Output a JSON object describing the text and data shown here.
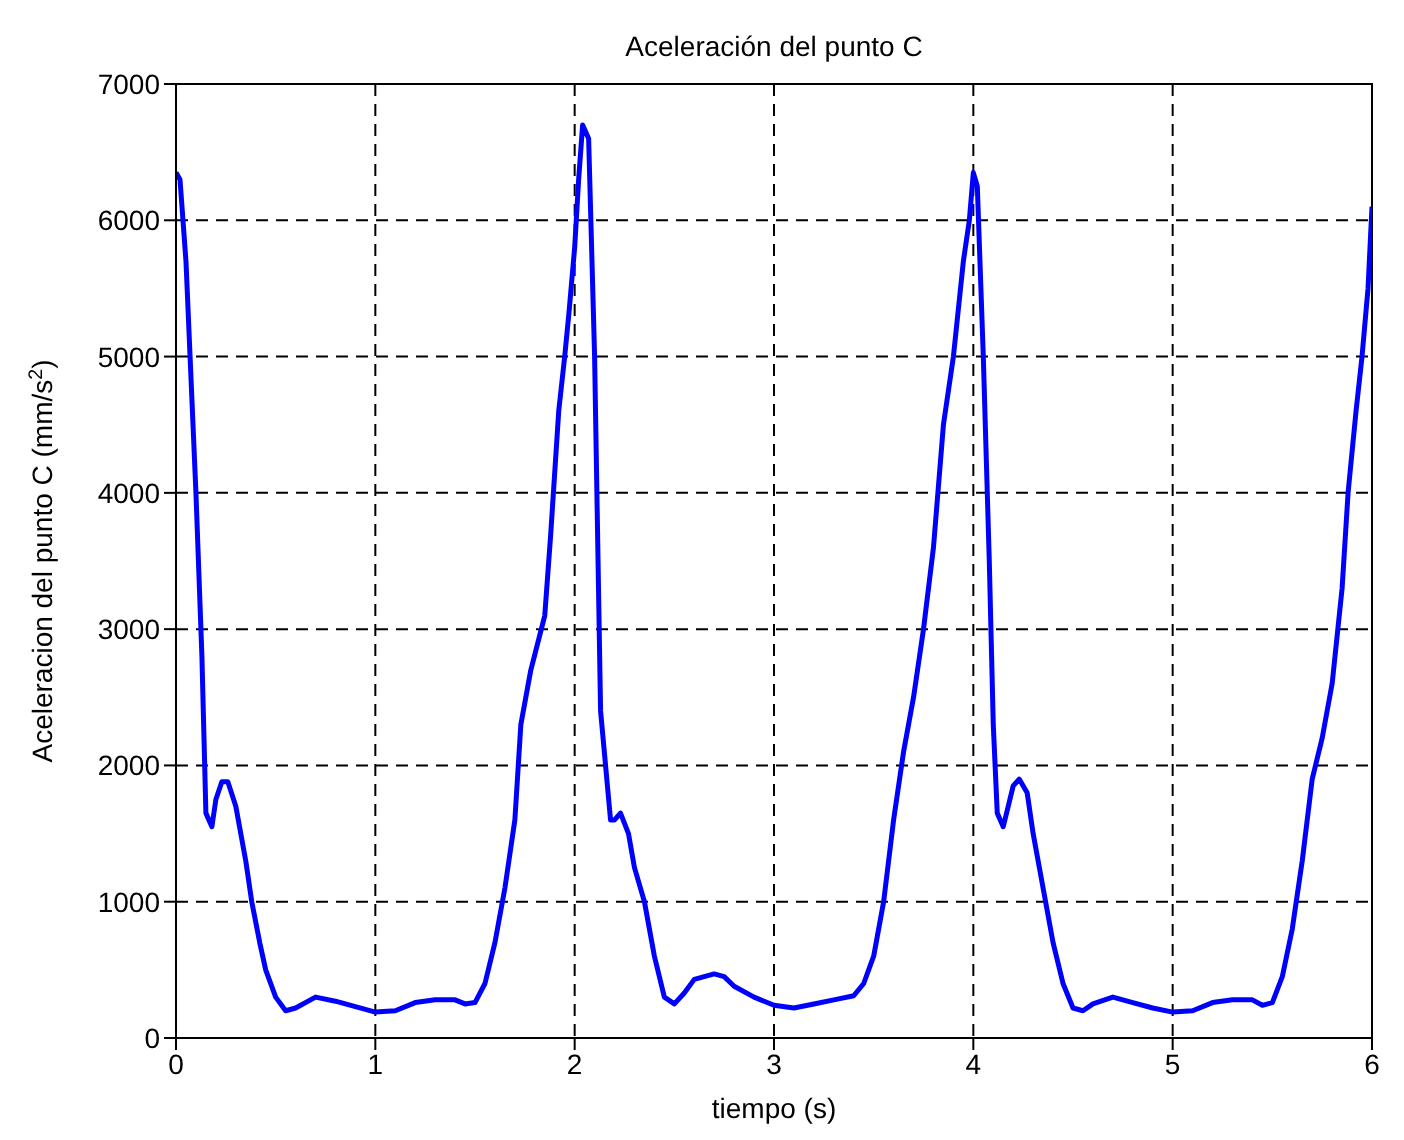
{
  "chart_data": {
    "type": "line",
    "title": "Aceleración del punto C",
    "xlabel": "tiempo (s)",
    "ylabel": "Aceleracion del punto C (mm/s$^{2}$)",
    "x": [
      0,
      0.02,
      0.05,
      0.1,
      0.13,
      0.15,
      0.18,
      0.2,
      0.23,
      0.26,
      0.3,
      0.35,
      0.38,
      0.42,
      0.45,
      0.5,
      0.55,
      0.6,
      0.7,
      0.8,
      0.9,
      1.0,
      1.1,
      1.2,
      1.3,
      1.4,
      1.45,
      1.5,
      1.55,
      1.6,
      1.65,
      1.7,
      1.73,
      1.78,
      1.85,
      1.88,
      1.92,
      1.95,
      1.97,
      2.0,
      2.02,
      2.04,
      2.07,
      2.1,
      2.13,
      2.18,
      2.2,
      2.23,
      2.27,
      2.3,
      2.35,
      2.4,
      2.45,
      2.5,
      2.55,
      2.6,
      2.65,
      2.7,
      2.75,
      2.8,
      2.9,
      3.0,
      3.1,
      3.2,
      3.3,
      3.4,
      3.45,
      3.5,
      3.55,
      3.6,
      3.65,
      3.7,
      3.75,
      3.8,
      3.85,
      3.9,
      3.95,
      3.98,
      4.0,
      4.02,
      4.05,
      4.08,
      4.1,
      4.12,
      4.15,
      4.2,
      4.23,
      4.27,
      4.3,
      4.35,
      4.4,
      4.45,
      4.5,
      4.55,
      4.6,
      4.7,
      4.8,
      4.9,
      5.0,
      5.1,
      5.2,
      5.3,
      5.4,
      5.45,
      5.5,
      5.55,
      5.6,
      5.65,
      5.7,
      5.75,
      5.8,
      5.85,
      5.88,
      5.92,
      5.95,
      5.98,
      6.0
    ],
    "series": [
      {
        "color": "#0000ff",
        "values": [
          6350,
          6300,
          5700,
          4000,
          2800,
          1650,
          1550,
          1750,
          1880,
          1880,
          1700,
          1300,
          1000,
          700,
          500,
          300,
          200,
          220,
          300,
          270,
          230,
          190,
          200,
          260,
          280,
          280,
          250,
          260,
          400,
          700,
          1100,
          1600,
          2300,
          2700,
          3100,
          3700,
          4600,
          5000,
          5300,
          5800,
          6300,
          6700,
          6600,
          5000,
          2400,
          1600,
          1600,
          1650,
          1500,
          1250,
          1000,
          600,
          300,
          250,
          330,
          430,
          450,
          470,
          450,
          380,
          300,
          240,
          220,
          250,
          280,
          310,
          400,
          600,
          1000,
          1600,
          2100,
          2500,
          3000,
          3600,
          4500,
          5000,
          5700,
          6000,
          6350,
          6250,
          5000,
          3500,
          2300,
          1650,
          1550,
          1850,
          1900,
          1800,
          1500,
          1100,
          700,
          400,
          220,
          200,
          250,
          300,
          260,
          220,
          190,
          200,
          260,
          280,
          280,
          240,
          260,
          450,
          800,
          1300,
          1900,
          2200,
          2600,
          3300,
          4000,
          4600,
          5000,
          5500,
          6100
        ]
      }
    ],
    "xlim": [
      0,
      6
    ],
    "xticks": [
      0,
      1,
      2,
      3,
      4,
      5,
      6
    ],
    "ylim": [
      0,
      7000
    ],
    "yticks": [
      0,
      1000,
      2000,
      3000,
      4000,
      5000,
      6000,
      7000
    ],
    "grid": true,
    "line_style": "solid",
    "marker": "none",
    "legend": false
  }
}
